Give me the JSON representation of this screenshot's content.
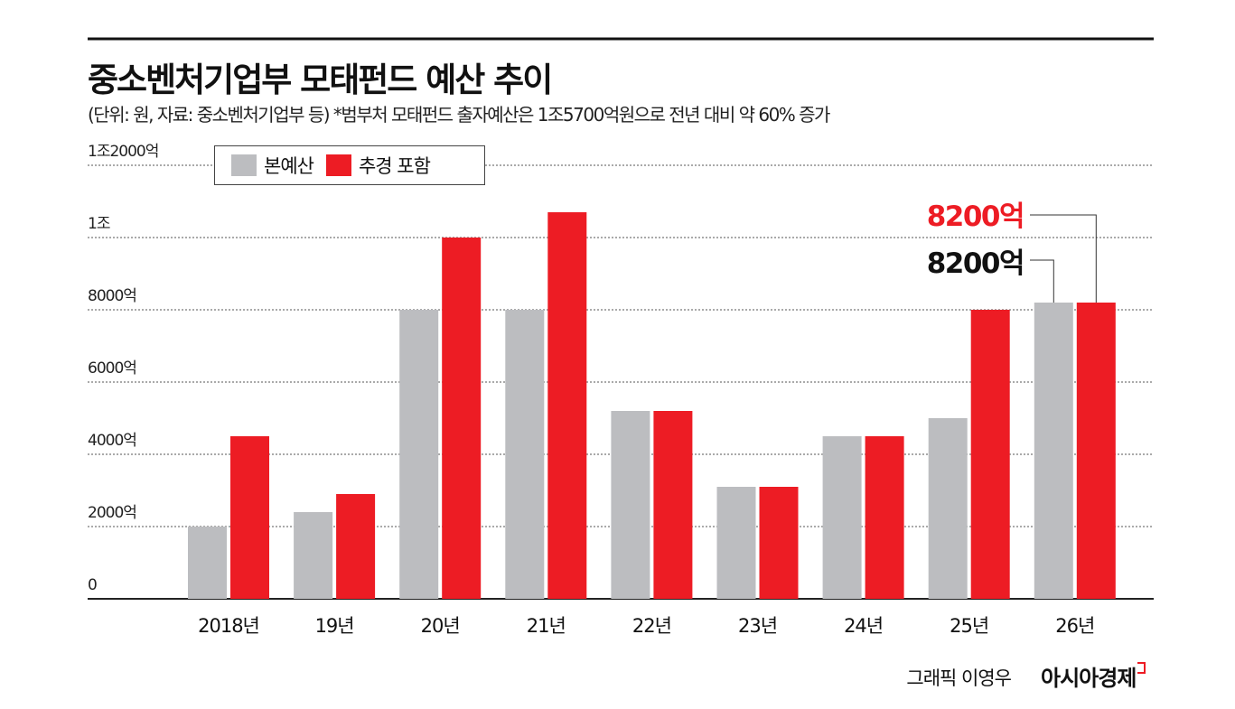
{
  "title": "중소벤처기업부 모태펀드 예산 추이",
  "subtitle": "(단위: 원, 자료: 중소벤처기업부 등)  *범부처 모태펀드 출자예산은 1조5700억원으로 전년 대비 약 60% 증가",
  "credit": "그래픽 이영우",
  "brand": "아시아경제",
  "colors": {
    "base": "#bcbdc0",
    "supplementary": "#ed1c24",
    "text": "#111111"
  },
  "chart_data": {
    "type": "bar",
    "categories": [
      "2018년",
      "19년",
      "20년",
      "21년",
      "22년",
      "23년",
      "24년",
      "25년",
      "26년"
    ],
    "series": [
      {
        "name": "본예산",
        "values": [
          2000,
          2400,
          8000,
          8000,
          5200,
          3100,
          4500,
          5000,
          8200
        ]
      },
      {
        "name": "추경 포함",
        "values": [
          4500,
          2900,
          10000,
          10700,
          5200,
          3100,
          4500,
          8000,
          8200
        ]
      }
    ],
    "yticks": [
      0,
      2000,
      4000,
      6000,
      8000,
      10000,
      12000
    ],
    "ytick_labels": [
      "0",
      "2000억",
      "4000억",
      "6000억",
      "8000억",
      "1조",
      "1조2000억"
    ],
    "ylim": [
      0,
      12000
    ],
    "grid": true,
    "legend": "top-left",
    "annotations": [
      {
        "text": "8200억",
        "series": "추경 포함",
        "category": "26년",
        "color": "#ed1c24"
      },
      {
        "text": "8200억",
        "series": "본예산",
        "category": "26년",
        "color": "#111111"
      }
    ]
  }
}
